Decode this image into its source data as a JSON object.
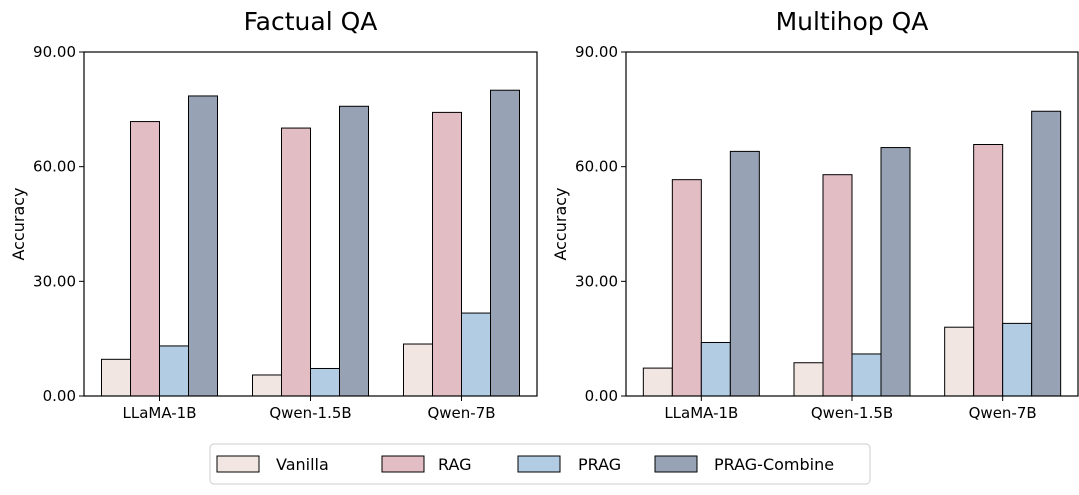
{
  "chart_data": [
    {
      "type": "bar",
      "title": "Factual QA",
      "xlabel": "",
      "ylabel": "Accuracy",
      "ylim": [
        0,
        90
      ],
      "yticks": [
        "0.00",
        "30.00",
        "60.00",
        "90.00"
      ],
      "categories": [
        "LLaMA-1B",
        "Qwen-1.5B",
        "Qwen-7B"
      ],
      "series": [
        {
          "name": "Vanilla",
          "color": "#f2e6e3",
          "values": [
            9.6,
            5.5,
            13.6
          ]
        },
        {
          "name": "RAG",
          "color": "#e2bdc4",
          "values": [
            71.8,
            70.1,
            74.2
          ]
        },
        {
          "name": "PRAG",
          "color": "#b2cde3",
          "values": [
            13.1,
            7.2,
            21.7
          ]
        },
        {
          "name": "PRAG-Combine",
          "color": "#97a3b4",
          "values": [
            78.5,
            75.8,
            80.0
          ]
        }
      ]
    },
    {
      "type": "bar",
      "title": "Multihop QA",
      "xlabel": "",
      "ylabel": "Accuracy",
      "ylim": [
        0,
        90
      ],
      "yticks": [
        "0.00",
        "30.00",
        "60.00",
        "90.00"
      ],
      "categories": [
        "LLaMA-1B",
        "Qwen-1.5B",
        "Qwen-7B"
      ],
      "series": [
        {
          "name": "Vanilla",
          "color": "#f2e6e3",
          "values": [
            7.3,
            8.7,
            18.0
          ]
        },
        {
          "name": "RAG",
          "color": "#e2bdc4",
          "values": [
            56.6,
            57.9,
            65.8
          ]
        },
        {
          "name": "PRAG",
          "color": "#b2cde3",
          "values": [
            14.0,
            11.0,
            19.0
          ]
        },
        {
          "name": "PRAG-Combine",
          "color": "#97a3b4",
          "values": [
            64.0,
            65.0,
            74.5
          ]
        }
      ]
    }
  ],
  "legend": {
    "items": [
      {
        "label": "Vanilla",
        "color": "#f2e6e3"
      },
      {
        "label": "RAG",
        "color": "#e2bdc4"
      },
      {
        "label": "PRAG",
        "color": "#b2cde3"
      },
      {
        "label": "PRAG-Combine",
        "color": "#97a3b4"
      }
    ]
  }
}
